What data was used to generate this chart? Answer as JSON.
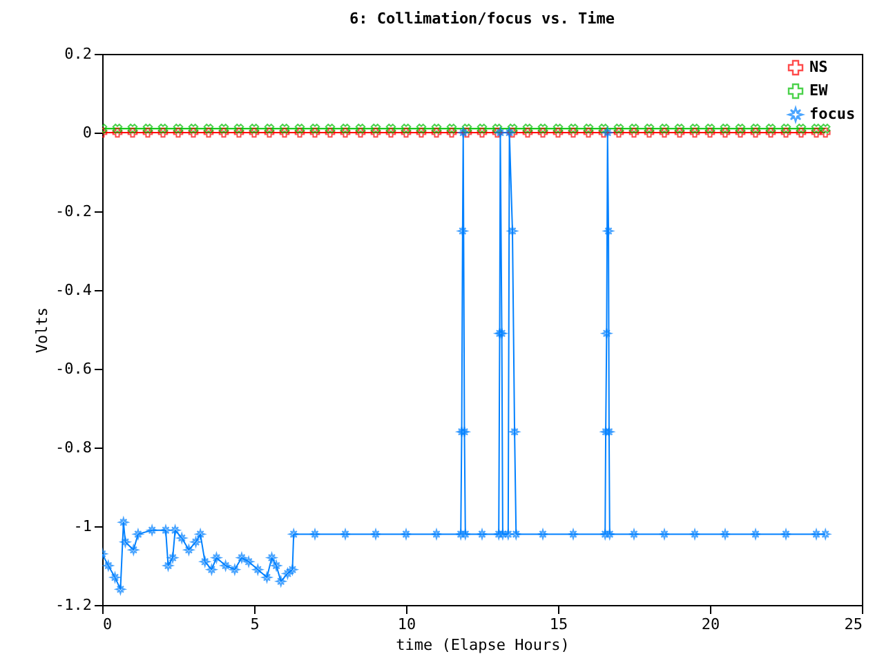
{
  "chart_data": {
    "type": "line",
    "title": "6: Collimation/focus vs. Time",
    "xlabel": "time (Elapse Hours)",
    "ylabel": "Volts",
    "xlim": [
      0,
      25
    ],
    "xticks": [
      0,
      5,
      10,
      15,
      20,
      25
    ],
    "ylim": [
      -1.2,
      0.2
    ],
    "yticks": [
      0.2,
      0,
      -0.2,
      -0.4,
      -0.6,
      -0.8,
      -1,
      -1.2
    ],
    "grid": false,
    "legend": "top right",
    "series": [
      {
        "name": "NS",
        "color": "#ff0000",
        "marker": "cross",
        "x": [
          0,
          0.5,
          1,
          1.5,
          2,
          2.5,
          3,
          3.5,
          4,
          4.5,
          5,
          5.5,
          6,
          6.5,
          7,
          7.5,
          8,
          8.5,
          9,
          9.5,
          10,
          10.5,
          11,
          11.5,
          12,
          12.5,
          13,
          13.5,
          14,
          14.5,
          15,
          15.5,
          16,
          16.5,
          17,
          17.5,
          18,
          18.5,
          19,
          19.5,
          20,
          20.5,
          21,
          21.5,
          22,
          22.5,
          23,
          23.5,
          23.8
        ],
        "values": [
          0,
          0,
          0,
          0,
          0,
          0,
          0,
          0,
          0,
          0,
          0,
          0,
          0,
          0,
          0,
          0,
          0,
          0,
          0,
          0,
          0,
          0,
          0,
          0,
          0,
          0,
          0,
          0,
          0,
          0,
          0,
          0,
          0,
          0,
          0,
          0,
          0,
          0,
          0,
          0,
          0,
          0,
          0,
          0,
          0,
          0,
          0,
          0,
          0
        ]
      },
      {
        "name": "EW",
        "color": "#00c000",
        "marker": "x",
        "x": [
          0,
          0.5,
          1,
          1.5,
          2,
          2.5,
          3,
          3.5,
          4,
          4.5,
          5,
          5.5,
          6,
          6.5,
          7,
          7.5,
          8,
          8.5,
          9,
          9.5,
          10,
          10.5,
          11,
          11.5,
          12,
          12.5,
          13,
          13.5,
          14,
          14.5,
          15,
          15.5,
          16,
          16.5,
          17,
          17.5,
          18,
          18.5,
          19,
          19.5,
          20,
          20.5,
          21,
          21.5,
          22,
          22.5,
          23,
          23.5,
          23.8
        ],
        "values": [
          0.01,
          0.01,
          0.01,
          0.01,
          0.01,
          0.01,
          0.01,
          0.01,
          0.01,
          0.01,
          0.01,
          0.01,
          0.01,
          0.01,
          0.01,
          0.01,
          0.01,
          0.01,
          0.01,
          0.01,
          0.01,
          0.01,
          0.01,
          0.01,
          0.01,
          0.01,
          0.01,
          0.01,
          0.01,
          0.01,
          0.01,
          0.01,
          0.01,
          0.01,
          0.01,
          0.01,
          0.01,
          0.01,
          0.01,
          0.01,
          0.01,
          0.01,
          0.01,
          0.01,
          0.01,
          0.01,
          0.01,
          0.01,
          0.01
        ]
      },
      {
        "name": "focus",
        "color": "#0080ff",
        "marker": "star",
        "x": [
          0,
          0.2,
          0.42,
          0.6,
          0.7,
          0.76,
          1.03,
          1.18,
          1.64,
          2.09,
          2.17,
          2.32,
          2.4,
          2.62,
          2.85,
          3.08,
          3.23,
          3.38,
          3.6,
          3.76,
          4.06,
          4.36,
          4.59,
          4.82,
          5.12,
          5.42,
          5.58,
          5.73,
          5.88,
          6.1,
          6.26,
          6.3,
          7,
          8,
          9,
          10,
          11,
          11.8,
          11.83,
          11.86,
          11.88,
          11.92,
          11.95,
          12.5,
          13.05,
          13.08,
          13.1,
          13.15,
          13.18,
          13.36,
          13.4,
          13.5,
          13.57,
          13.62,
          14.5,
          15.5,
          16.55,
          16.57,
          16.6,
          16.63,
          16.66,
          16.68,
          16.7,
          17.5,
          18.5,
          19.5,
          20.5,
          21.5,
          22.5,
          23.5,
          23.8
        ],
        "values": [
          -1.07,
          -1.1,
          -1.13,
          -1.16,
          -0.99,
          -1.04,
          -1.06,
          -1.02,
          -1.01,
          -1.01,
          -1.1,
          -1.08,
          -1.01,
          -1.03,
          -1.06,
          -1.04,
          -1.02,
          -1.09,
          -1.11,
          -1.08,
          -1.1,
          -1.11,
          -1.08,
          -1.09,
          -1.11,
          -1.13,
          -1.08,
          -1.1,
          -1.14,
          -1.12,
          -1.11,
          -1.02,
          -1.02,
          -1.02,
          -1.02,
          -1.02,
          -1.02,
          -1.02,
          -0.76,
          -0.25,
          0,
          -0.76,
          -1.02,
          -1.02,
          -1.02,
          -0.51,
          0,
          -0.51,
          -1.02,
          -1.02,
          0,
          -0.25,
          -0.76,
          -1.02,
          -1.02,
          -1.02,
          -1.02,
          -0.76,
          -0.51,
          0,
          -0.25,
          -0.76,
          -1.02,
          -1.02,
          -1.02,
          -1.02,
          -1.02,
          -1.02,
          -1.02,
          -1.02,
          -1.02
        ]
      }
    ]
  }
}
